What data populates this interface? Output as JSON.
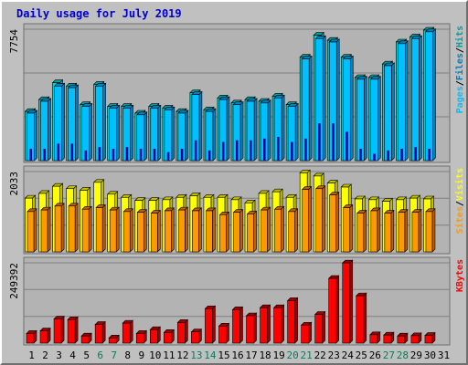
{
  "colors": {
    "background": "#c0c0c0",
    "panel": "#b3b3b3",
    "title": "#0000cc",
    "hits_face": "#00d0d0",
    "hits_side": "#00a0a0",
    "files_face": "#00c0ff",
    "files_side": "#0080c0",
    "pages": "#0000a0",
    "visits_face": "#ffff00",
    "visits_side": "#c0c000",
    "sites_face": "#ff9900",
    "sites_side": "#c06000",
    "kbytes_face": "#ff0000",
    "kbytes_side": "#a00000",
    "weekend_label": "#00805c"
  },
  "chart_data": {
    "type": "bar",
    "title": "Daily usage for July 2019",
    "days": [
      "1",
      "2",
      "3",
      "4",
      "5",
      "6",
      "7",
      "8",
      "9",
      "10",
      "11",
      "12",
      "13",
      "14",
      "15",
      "16",
      "17",
      "18",
      "19",
      "20",
      "21",
      "22",
      "23",
      "24",
      "25",
      "26",
      "27",
      "28",
      "29",
      "30",
      "31"
    ],
    "weekend_days": [
      "6",
      "7",
      "13",
      "14",
      "20",
      "21",
      "27",
      "28"
    ],
    "panels": [
      {
        "name": "requests",
        "ymax": 7754,
        "ymax_label": "7754",
        "legend": [
          "Pages",
          "/",
          "Files",
          "/",
          "Hits"
        ],
        "legend_colors": [
          "#00c0ff",
          "#000000",
          "#0080c0",
          "#000000",
          "#00a0a0"
        ],
        "series": [
          {
            "name": "Hits",
            "values": [
              2900,
              3600,
              4600,
              4400,
              3300,
              4500,
              3200,
              3200,
              2800,
              3200,
              3100,
              2900,
              4000,
              3000,
              3700,
              3400,
              3600,
              3500,
              3800,
              3300,
              6100,
              7400,
              7100,
              6100,
              4900,
              4900,
              5700,
              7000,
              7300,
              7700
            ]
          },
          {
            "name": "Files",
            "values": [
              2800,
              3500,
              4400,
              4300,
              3200,
              4400,
              3100,
              3100,
              2700,
              3100,
              3000,
              2800,
              3900,
              2900,
              3600,
              3300,
              3500,
              3400,
              3700,
              3200,
              6000,
              7200,
              7000,
              6000,
              4800,
              4800,
              5600,
              6900,
              7200,
              7600
            ]
          },
          {
            "name": "Pages",
            "values": [
              700,
              700,
              1000,
              1000,
              600,
              800,
              700,
              800,
              700,
              700,
              500,
              700,
              1200,
              600,
              1100,
              1200,
              1200,
              1300,
              1400,
              1100,
              1300,
              2200,
              2200,
              1700,
              700,
              400,
              600,
              700,
              800,
              700
            ]
          }
        ]
      },
      {
        "name": "visitors",
        "ymax": 2033,
        "ymax_label": "2033",
        "legend": [
          "Sites",
          "/",
          "Visits"
        ],
        "legend_colors": [
          "#ff9900",
          "#000000",
          "#ffff00"
        ],
        "series": [
          {
            "name": "Visits",
            "values": [
              1360,
              1480,
              1660,
              1600,
              1560,
              1760,
              1460,
              1380,
              1300,
              1300,
              1320,
              1380,
              1420,
              1380,
              1380,
              1320,
              1240,
              1480,
              1520,
              1380,
              2000,
              1920,
              1740,
              1640,
              1340,
              1320,
              1280,
              1320,
              1360,
              1340
            ]
          },
          {
            "name": "Sites",
            "values": [
              1020,
              1060,
              1160,
              1160,
              1080,
              1120,
              1060,
              1020,
              1000,
              980,
              1040,
              1060,
              1040,
              1040,
              940,
              1000,
              960,
              1060,
              1080,
              1020,
              1580,
              1600,
              1440,
              1120,
              980,
              1040,
              980,
              1000,
              1000,
              1020
            ]
          }
        ]
      },
      {
        "name": "kbytes",
        "ymax": 249392,
        "ymax_label": "249392",
        "legend": [
          "KBytes"
        ],
        "legend_colors": [
          "#ff0000"
        ],
        "series": [
          {
            "name": "KBytes",
            "values": [
              30000,
              38000,
              75000,
              73000,
              22000,
              58000,
              16000,
              62000,
              30000,
              42000,
              33000,
              64000,
              35000,
              107000,
              53000,
              104000,
              85000,
              110000,
              110000,
              132000,
              56000,
              89000,
              201000,
              249000,
              147000,
              26000,
              25000,
              22000,
              23000,
              24000
            ]
          }
        ]
      }
    ]
  }
}
